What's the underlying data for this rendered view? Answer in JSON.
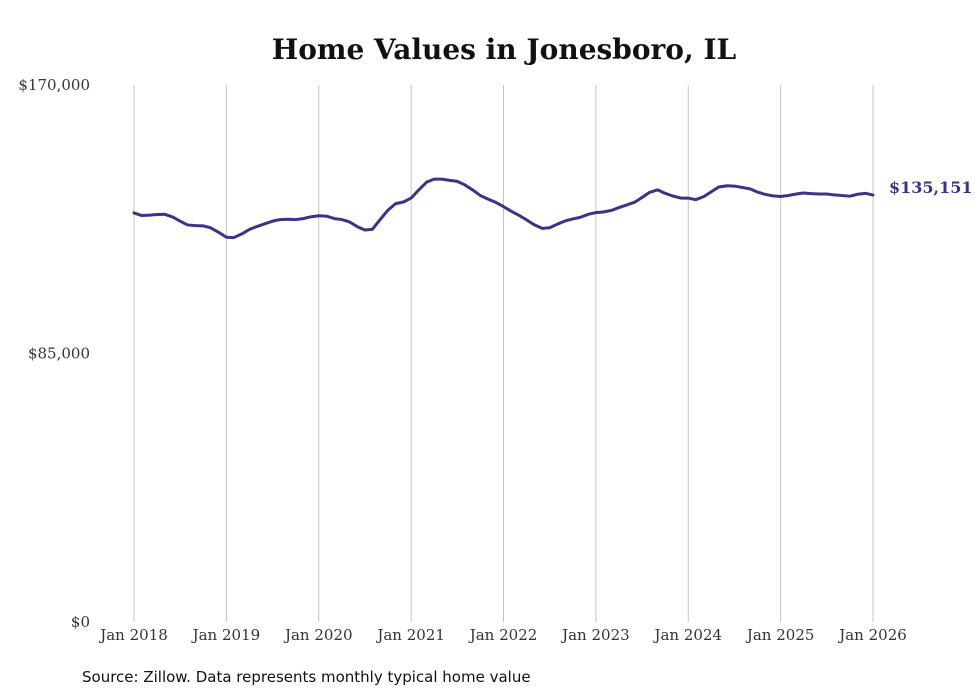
{
  "colors": {
    "line": "#3b3289",
    "grid": "#c4c4c4",
    "text": "#333333",
    "title": "#111111"
  },
  "source_text": "Source: Zillow. Data represents monthly typical home value",
  "chart_data": {
    "type": "line",
    "title": "Home Values in Jonesboro, IL",
    "xlabel": "",
    "ylabel": "",
    "ylim": [
      0,
      170000
    ],
    "y_ticks": [
      {
        "value": 0,
        "label": "$0"
      },
      {
        "value": 85000,
        "label": "$85,000"
      },
      {
        "value": 170000,
        "label": "$170,000"
      }
    ],
    "x_ticks": [
      {
        "x": 2018.0,
        "label": "Jan 2018"
      },
      {
        "x": 2019.0,
        "label": "Jan 2019"
      },
      {
        "x": 2020.0,
        "label": "Jan 2020"
      },
      {
        "x": 2021.0,
        "label": "Jan 2021"
      },
      {
        "x": 2022.0,
        "label": "Jan 2022"
      },
      {
        "x": 2023.0,
        "label": "Jan 2023"
      },
      {
        "x": 2024.0,
        "label": "Jan 2024"
      },
      {
        "x": 2025.0,
        "label": "Jan 2025"
      },
      {
        "x": 2026.0,
        "label": "Jan 2026"
      }
    ],
    "xlim": [
      2018.0,
      2026.0
    ],
    "grid": "vertical",
    "end_label": "$135,151",
    "series": [
      {
        "name": "Typical home value",
        "x": [
          2018.0,
          2018.08,
          2018.17,
          2018.25,
          2018.33,
          2018.42,
          2018.5,
          2018.58,
          2018.67,
          2018.75,
          2018.83,
          2018.92,
          2019.0,
          2019.08,
          2019.17,
          2019.25,
          2019.33,
          2019.42,
          2019.5,
          2019.58,
          2019.67,
          2019.75,
          2019.83,
          2019.92,
          2020.0,
          2020.08,
          2020.17,
          2020.25,
          2020.33,
          2020.42,
          2020.5,
          2020.58,
          2020.67,
          2020.75,
          2020.83,
          2020.92,
          2021.0,
          2021.08,
          2021.17,
          2021.25,
          2021.33,
          2021.42,
          2021.5,
          2021.58,
          2021.67,
          2021.75,
          2021.83,
          2021.92,
          2022.0,
          2022.08,
          2022.17,
          2022.25,
          2022.33,
          2022.42,
          2022.5,
          2022.58,
          2022.67,
          2022.75,
          2022.83,
          2022.92,
          2023.0,
          2023.08,
          2023.17,
          2023.25,
          2023.33,
          2023.42,
          2023.5,
          2023.58,
          2023.67,
          2023.75,
          2023.83,
          2023.92,
          2024.0,
          2024.08,
          2024.17,
          2024.25,
          2024.33,
          2024.42,
          2024.5,
          2024.58,
          2024.67,
          2024.75,
          2024.83,
          2024.92,
          2025.0,
          2025.08,
          2025.17,
          2025.25,
          2025.33,
          2025.42,
          2025.5,
          2025.58,
          2025.67,
          2025.75,
          2025.83,
          2025.92,
          2026.0
        ],
        "values": [
          129500,
          128700,
          128800,
          129000,
          129100,
          128200,
          126900,
          125700,
          125500,
          125400,
          124800,
          123300,
          121800,
          121700,
          122900,
          124300,
          125200,
          126100,
          126900,
          127400,
          127500,
          127400,
          127700,
          128300,
          128600,
          128500,
          127700,
          127400,
          126700,
          125100,
          124100,
          124300,
          127600,
          130400,
          132400,
          133000,
          134200,
          136700,
          139300,
          140200,
          140200,
          139800,
          139500,
          138400,
          136700,
          135000,
          133900,
          132800,
          131500,
          130100,
          128700,
          127300,
          125800,
          124600,
          124800,
          125900,
          127000,
          127600,
          128100,
          129100,
          129600,
          129800,
          130300,
          131200,
          132000,
          132900,
          134400,
          136000,
          136800,
          135700,
          134900,
          134200,
          134200,
          133700,
          134700,
          136200,
          137700,
          138100,
          138000,
          137600,
          137100,
          136100,
          135400,
          134900,
          134700,
          135000,
          135500,
          135800,
          135600,
          135500,
          135500,
          135200,
          135000,
          134800,
          135400,
          135700,
          135151
        ]
      }
    ]
  }
}
